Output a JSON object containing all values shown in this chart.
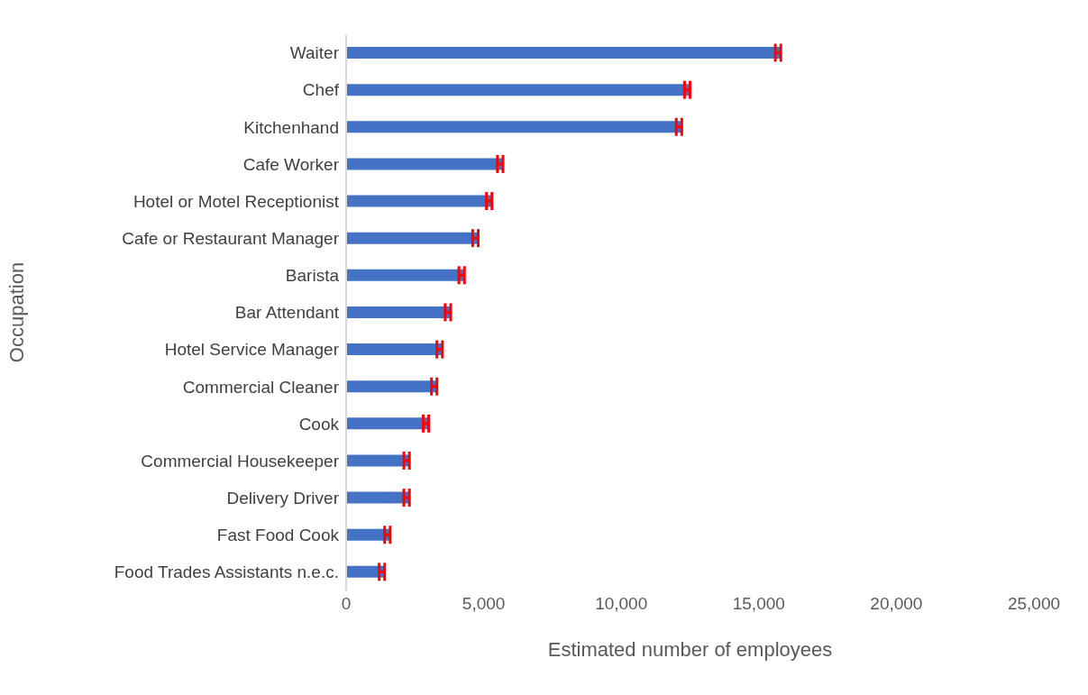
{
  "chart_data": {
    "type": "bar",
    "orientation": "horizontal",
    "xlabel": "Estimated number of employees",
    "ylabel": "Occupation",
    "categories": [
      "Waiter",
      "Chef",
      "Kitchenhand",
      "Cafe Worker",
      "Hotel or Motel Receptionist",
      "Cafe or Restaurant Manager",
      "Barista",
      "Bar Attendant",
      "Hotel Service Manager",
      "Commercial Cleaner",
      "Cook",
      "Commercial Housekeeper",
      "Delivery Driver",
      "Fast Food Cook",
      "Food Trades Assistants n.e.c."
    ],
    "values": [
      15800,
      12500,
      12200,
      5700,
      5300,
      4800,
      4300,
      3800,
      3500,
      3300,
      3000,
      2300,
      2300,
      1600,
      1400
    ],
    "errors": [
      [
        15600,
        15800
      ],
      [
        12300,
        12500
      ],
      [
        12000,
        12200
      ],
      [
        5500,
        5700
      ],
      [
        5100,
        5300
      ],
      [
        4600,
        4800
      ],
      [
        4100,
        4300
      ],
      [
        3600,
        3800
      ],
      [
        3300,
        3500
      ],
      [
        3100,
        3300
      ],
      [
        2800,
        3000
      ],
      [
        2100,
        2300
      ],
      [
        2100,
        2300
      ],
      [
        1400,
        1600
      ],
      [
        1200,
        1400
      ]
    ],
    "color": "#4472c4",
    "xlim": [
      0,
      25000
    ],
    "xticks": [
      {
        "value": 0,
        "label": "0"
      },
      {
        "value": 5000,
        "label": "5,000"
      },
      {
        "value": 10000,
        "label": "10,000"
      },
      {
        "value": 15000,
        "label": "15,000"
      },
      {
        "value": 20000,
        "label": "20,000"
      },
      {
        "value": 25000,
        "label": "25,000"
      }
    ],
    "grid": false,
    "legend": false
  }
}
